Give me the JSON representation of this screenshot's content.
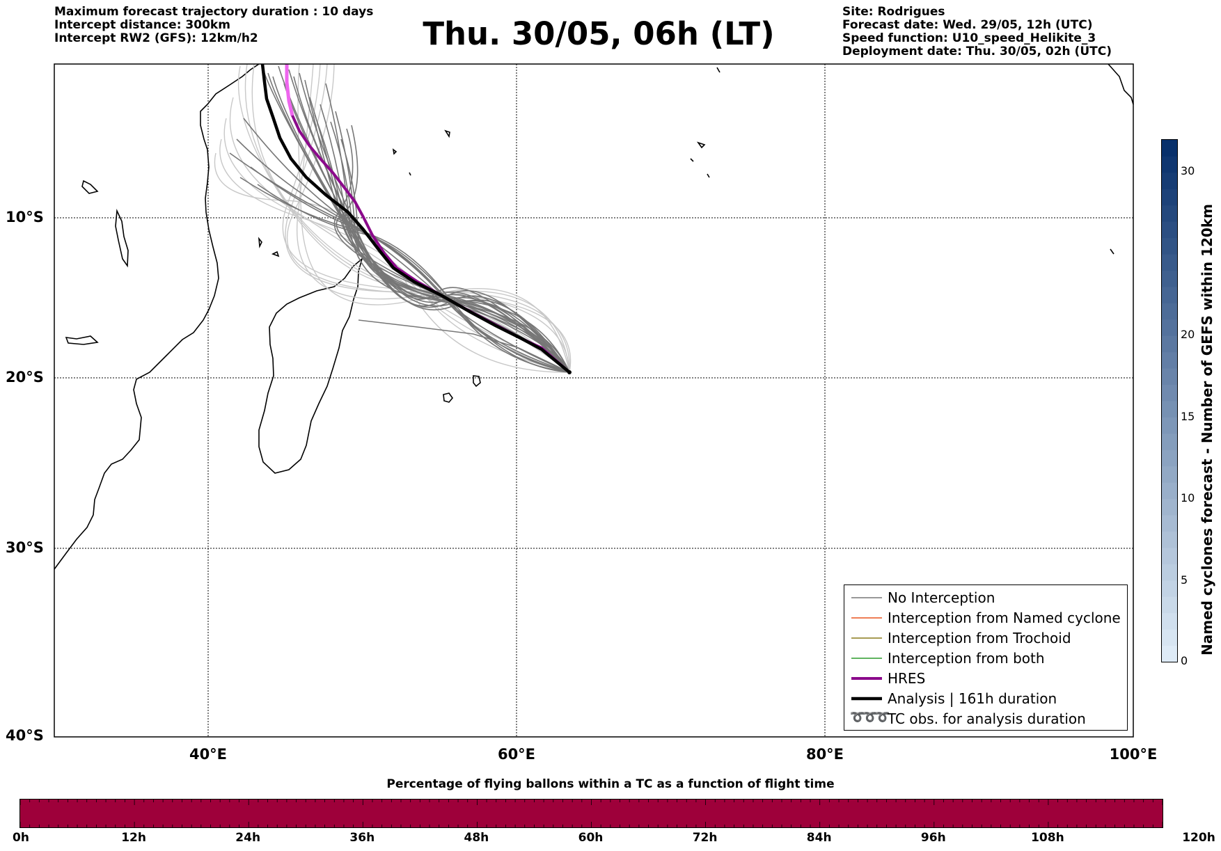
{
  "header": {
    "left": [
      "Maximum forecast trajectory duration : 10 days",
      "Intercept distance: 300km",
      "Intercept RW2 (GFS):  12km/h2"
    ],
    "right": [
      "Site: Rodrigues",
      "Forecast date: Wed. 29/05, 12h (UTC)",
      "Speed function: U10_speed_Helikite_3",
      "Deployment date: Thu. 30/05, 02h (UTC)"
    ],
    "title": "Thu. 30/05, 06h (LT)"
  },
  "map": {
    "lon_range": [
      30,
      100
    ],
    "lat_range": [
      -40,
      0
    ],
    "lat_labels": [
      "10°S",
      "20°S",
      "30°S",
      "40°S"
    ],
    "lon_labels": [
      "40°E",
      "60°E",
      "80°E",
      "100°E"
    ],
    "launch_point": {
      "lon": 63.4,
      "lat": -19.7
    },
    "colors": {
      "no_interception": "#777777",
      "named_cyclone": "#e8541e",
      "trochoid": "#8a7a1a",
      "both": "#2a9a2a",
      "hres": "#8b0a8b",
      "hres_light": "#ee66ee",
      "analysis": "#000000"
    }
  },
  "legend": {
    "items": [
      {
        "key": "no_interception",
        "label": "No Interception"
      },
      {
        "key": "named_cyclone",
        "label": "Interception from Named cyclone"
      },
      {
        "key": "trochoid",
        "label": "Interception from Trochoid"
      },
      {
        "key": "both",
        "label": "Interception from both"
      },
      {
        "key": "hres",
        "label": "HRES"
      },
      {
        "key": "analysis",
        "label": "Analysis | 161h duration"
      },
      {
        "key": "tc_obs",
        "label": "TC obs. for analysis duration",
        "symbol": "➰➰➰"
      }
    ]
  },
  "colorbar": {
    "title": "Named cyclones forecast - Number of GEFS within 120km",
    "ticks": [
      "0",
      "5",
      "10",
      "15",
      "20",
      "30"
    ],
    "min": 0,
    "max": 32
  },
  "bottom": {
    "title": "Percentage of flying ballons within a TC as a function of flight time",
    "fill_color": "#9e003a",
    "ticks": [
      "0h",
      "12h",
      "24h",
      "36h",
      "48h",
      "60h",
      "72h",
      "84h",
      "96h",
      "108h",
      "120h"
    ]
  }
}
